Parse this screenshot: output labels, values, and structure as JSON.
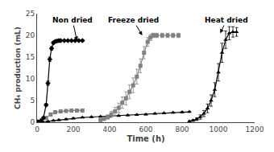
{
  "chart_data": {
    "type": "line",
    "title": "",
    "xlabel": "Time (h)",
    "ylabel": "CH₄ production (mL)",
    "xlim": [
      0,
      1200
    ],
    "ylim": [
      0,
      25
    ],
    "xticks": [
      0,
      200,
      400,
      600,
      800,
      1000,
      1200
    ],
    "yticks": [
      0,
      5,
      10,
      15,
      20,
      25
    ],
    "grid": false,
    "annotations": [
      {
        "text": "Non dried",
        "xy": [
          220,
          18.8
        ],
        "xytext": [
          195,
          23.5
        ]
      },
      {
        "text": "Freeze dried",
        "xy": [
          580,
          20.0
        ],
        "xytext": [
          530,
          23.5
        ]
      },
      {
        "text": "Heat dried",
        "xy": [
          1010,
          20.5
        ],
        "xytext": [
          1045,
          23.5
        ]
      }
    ],
    "series": [
      {
        "color": "gray",
        "marker": "square",
        "line_style": "solid",
        "x": [
          5,
          25,
          50,
          75,
          100,
          130,
          160,
          190,
          220,
          250
        ],
        "values": [
          0.1,
          0.4,
          1.0,
          1.8,
          2.3,
          2.5,
          2.6,
          2.7,
          2.7,
          2.7
        ],
        "yerr": [
          0.05,
          0.1,
          0.2,
          0.3,
          0.35,
          0.35,
          0.3,
          0.3,
          0.25,
          0.25
        ]
      },
      {
        "color": "black",
        "marker": "triangle-up",
        "line_style": "solid",
        "x": [
          5,
          30,
          60,
          90,
          120,
          160,
          200,
          250,
          300,
          350,
          400,
          450,
          500,
          550,
          600,
          650,
          700,
          750,
          800,
          840
        ],
        "values": [
          0.05,
          0.1,
          0.2,
          0.35,
          0.5,
          0.7,
          0.9,
          1.1,
          1.2,
          1.3,
          1.4,
          1.5,
          1.6,
          1.7,
          1.8,
          2.0,
          2.1,
          2.2,
          2.3,
          2.4
        ],
        "yerr": [
          0.05,
          0.05,
          0.07,
          0.08,
          0.1,
          0.1,
          0.1,
          0.1,
          0.1,
          0.1,
          0.1,
          0.1,
          0.1,
          0.1,
          0.1,
          0.1,
          0.1,
          0.1,
          0.1,
          0.1
        ]
      },
      {
        "color": "black",
        "marker": "diamond",
        "line_style": "solid",
        "x": [
          5,
          20,
          35,
          50,
          60,
          70,
          80,
          90,
          100,
          110,
          120,
          130,
          150,
          170,
          190,
          210,
          230,
          250
        ],
        "values": [
          0.1,
          0.3,
          1.0,
          4.0,
          9.0,
          14.5,
          17.0,
          18.3,
          18.6,
          18.7,
          18.8,
          18.8,
          18.8,
          18.8,
          18.8,
          18.8,
          18.8,
          18.8
        ],
        "yerr": [
          0.05,
          0.1,
          0.15,
          0.3,
          0.5,
          0.5,
          0.4,
          0.3,
          0.2,
          0.2,
          0.2,
          0.15,
          0.15,
          0.15,
          0.15,
          0.15,
          0.15,
          0.15
        ]
      },
      {
        "color": "gray",
        "marker": "square",
        "line_style": "solid",
        "x": [
          350,
          370,
          390,
          410,
          430,
          450,
          470,
          490,
          510,
          530,
          550,
          570,
          590,
          610,
          625,
          640,
          660,
          690,
          720,
          750,
          780
        ],
        "values": [
          0.5,
          0.8,
          1.2,
          1.8,
          2.5,
          3.3,
          4.5,
          5.5,
          7.0,
          8.5,
          10.5,
          13.0,
          16.0,
          18.5,
          19.5,
          20.0,
          20.0,
          20.0,
          20.0,
          20.0,
          20.0
        ],
        "yerr": [
          0.3,
          0.4,
          0.5,
          0.7,
          0.9,
          1.1,
          1.3,
          1.5,
          1.6,
          1.7,
          1.7,
          1.6,
          1.4,
          1.0,
          0.7,
          0.5,
          0.5,
          0.5,
          0.5,
          0.5,
          0.5
        ]
      },
      {
        "color": "black",
        "marker": "triangle-up",
        "line_style": "solid",
        "x": [
          840,
          860,
          880,
          900,
          920,
          940,
          960,
          980,
          1000,
          1020,
          1040,
          1060,
          1080,
          1100
        ],
        "values": [
          0.2,
          0.4,
          0.7,
          1.2,
          2.0,
          3.2,
          5.0,
          7.5,
          11.5,
          16.0,
          19.0,
          20.5,
          20.8,
          20.8
        ],
        "yerr": [
          0.15,
          0.2,
          0.3,
          0.5,
          0.7,
          1.0,
          1.3,
          1.6,
          2.0,
          2.2,
          2.0,
          1.5,
          1.2,
          1.0
        ]
      }
    ]
  }
}
